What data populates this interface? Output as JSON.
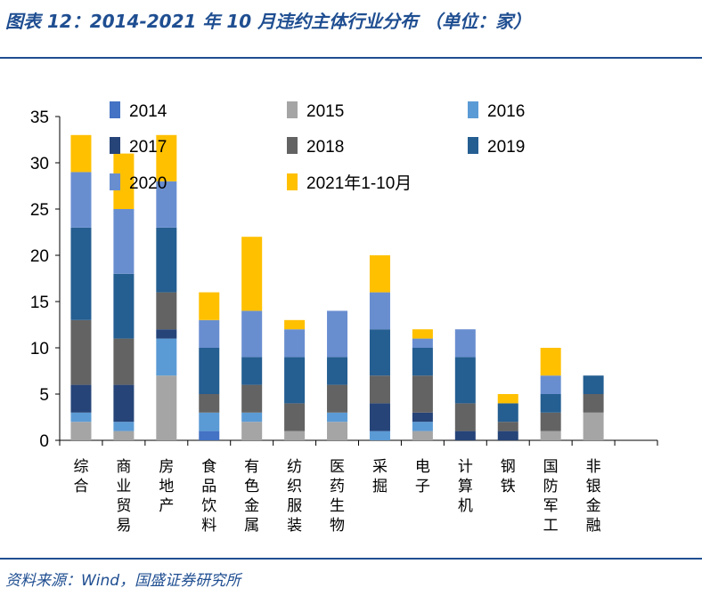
{
  "title": "图表 12：2014-2021 年 10 月违约主体行业分布 （单位：家）",
  "source": "资料来源：Wind，国盛证券研究所",
  "colors": {
    "title_blue": "#1f4e91",
    "series": [
      "#4472c4",
      "#a5a5a5",
      "#5b9bd5",
      "#264478",
      "#636363",
      "#255e91",
      "#698ed0",
      "#ffc000"
    ]
  },
  "chart_data": {
    "type": "bar",
    "stacked": true,
    "ylim": [
      0,
      35
    ],
    "yticks": [
      0,
      5,
      10,
      15,
      20,
      25,
      30,
      35
    ],
    "grid": false,
    "legend_position": "top",
    "categories": [
      "综合",
      "商业贸易",
      "房地产",
      "食品饮料",
      "有色金属",
      "纺织服装",
      "医药生物",
      "采掘",
      "电子",
      "计算机",
      "钢铁",
      "国防军工",
      "非银金融",
      ""
    ],
    "series": [
      {
        "name": "2014",
        "values": [
          0,
          0,
          0,
          1,
          0,
          0,
          0,
          0,
          0,
          0,
          0,
          0,
          0,
          0
        ]
      },
      {
        "name": "2015",
        "values": [
          2,
          1,
          7,
          0,
          2,
          1,
          2,
          0,
          1,
          0,
          0,
          1,
          3,
          0
        ]
      },
      {
        "name": "2016",
        "values": [
          1,
          1,
          4,
          2,
          1,
          0,
          1,
          1,
          1,
          0,
          0,
          0,
          0,
          0
        ]
      },
      {
        "name": "2017",
        "values": [
          3,
          4,
          1,
          0,
          0,
          0,
          0,
          3,
          1,
          1,
          1,
          0,
          0,
          0
        ]
      },
      {
        "name": "2018",
        "values": [
          7,
          5,
          4,
          2,
          3,
          3,
          3,
          3,
          4,
          3,
          1,
          2,
          2,
          0
        ]
      },
      {
        "name": "2019",
        "values": [
          10,
          7,
          7,
          5,
          3,
          5,
          3,
          5,
          3,
          5,
          2,
          2,
          2,
          0
        ]
      },
      {
        "name": "2020",
        "values": [
          6,
          7,
          5,
          3,
          5,
          3,
          5,
          4,
          1,
          3,
          0,
          2,
          0,
          0
        ]
      },
      {
        "name": "2021年1-10月",
        "values": [
          4,
          6,
          5,
          3,
          8,
          1,
          0,
          4,
          1,
          0,
          1,
          3,
          0,
          0
        ]
      }
    ],
    "stack_colors": [
      "#4472c4",
      "#a5a5a5",
      "#5b9bd5",
      "#264478",
      "#636363",
      "#255e91",
      "#698ed0",
      "#ffc000"
    ]
  }
}
